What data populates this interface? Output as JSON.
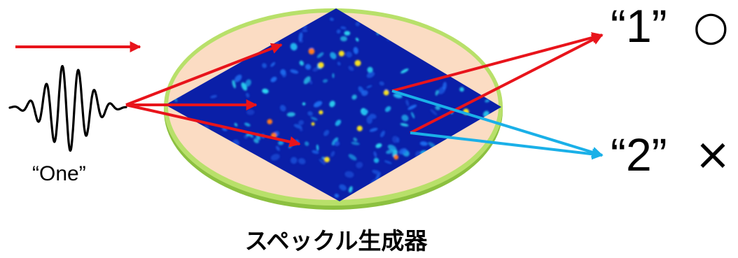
{
  "input": {
    "word": "“One”"
  },
  "device": {
    "caption": "スペックル生成器"
  },
  "outputs": [
    {
      "label": "“1”",
      "mark": "○",
      "mark_meaning": "correct",
      "arrow_color": "#e8141b"
    },
    {
      "label": "“2”",
      "mark": "×",
      "mark_meaning": "incorrect",
      "arrow_color": "#1ab0e8"
    }
  ],
  "colors": {
    "input_arrow": "#e8141b",
    "waveform": "#000000",
    "disk_face": "#fbdcc3",
    "disk_rim": "#a6d15a",
    "speckle_background": "#0a1fa8",
    "speckle_spots": "#20d8f0",
    "speckle_hot": "#f5e020",
    "correct_arrow": "#e8141b",
    "wrong_arrow": "#1ab0e8"
  }
}
